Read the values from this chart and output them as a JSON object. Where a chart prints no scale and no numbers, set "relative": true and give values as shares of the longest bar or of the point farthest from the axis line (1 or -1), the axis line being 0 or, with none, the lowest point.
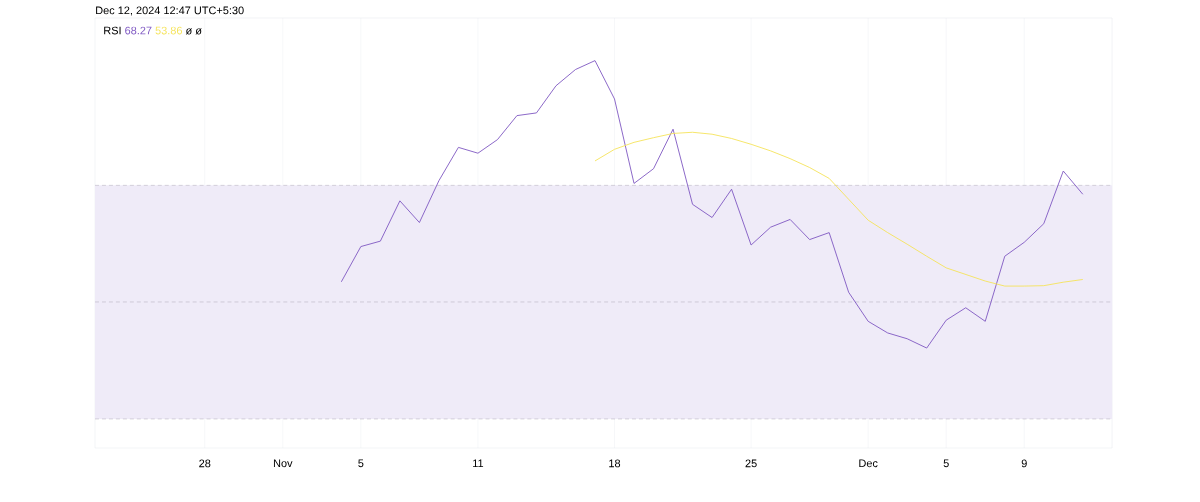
{
  "chart_data": {
    "type": "line",
    "title": "RSI",
    "relative": true,
    "legend": "top left",
    "grid": "x",
    "annotations": [
      "ø ø",
      "Dec 12, 2024 12:47 UTC+5:30"
    ],
    "x": [
      "2024-11-04",
      "2024-11-05",
      "2024-11-06",
      "2024-11-07",
      "2024-11-08",
      "2024-11-09",
      "2024-11-10",
      "2024-11-11",
      "2024-11-12",
      "2024-11-13",
      "2024-11-14",
      "2024-11-15",
      "2024-11-16",
      "2024-11-17",
      "2024-11-18",
      "2024-11-19",
      "2024-11-20",
      "2024-11-21",
      "2024-11-22",
      "2024-11-23",
      "2024-11-24",
      "2024-11-25",
      "2024-11-26",
      "2024-11-27",
      "2024-11-28",
      "2024-11-29",
      "2024-11-30",
      "2024-12-01",
      "2024-12-02",
      "2024-12-03",
      "2024-12-04",
      "2024-12-05",
      "2024-12-06",
      "2024-12-07",
      "2024-12-08",
      "2024-12-09",
      "2024-12-10",
      "2024-12-11",
      "2024-12-12"
    ],
    "series": [
      {
        "name": "68.27",
        "color": "#7e57c2",
        "values": [
          0.429,
          0.52,
          0.534,
          0.638,
          0.582,
          0.69,
          0.776,
          0.761,
          0.796,
          0.858,
          0.865,
          0.935,
          0.977,
          1,
          0.901,
          0.683,
          0.721,
          0.823,
          0.629,
          0.595,
          0.668,
          0.524,
          0.57,
          0.59,
          0.538,
          0.556,
          0.402,
          0.327,
          0.297,
          0.282,
          0.258,
          0.33,
          0.362,
          0.327,
          0.495,
          0.531,
          0.579,
          0.715,
          0.655
        ]
      },
      {
        "name": "53.86",
        "color": "#f5e35a",
        "values": [
          null,
          null,
          null,
          null,
          null,
          null,
          null,
          null,
          null,
          null,
          null,
          null,
          null,
          0.741,
          0.771,
          0.789,
          0.801,
          0.812,
          0.815,
          0.81,
          0.799,
          0.784,
          0.767,
          0.747,
          0.724,
          0.696,
          0.642,
          0.588,
          0.556,
          0.526,
          0.495,
          0.465,
          0.448,
          0.431,
          0.418,
          0.418,
          0.419,
          0.428,
          0.435
        ]
      }
    ],
    "xlim": [
      "2024-10-22T09:00",
      "2024-12-13T12:00"
    ],
    "xticks": [
      {
        "value": "2024-10-28",
        "label": "28"
      },
      {
        "value": "2024-11-01",
        "label": "Nov"
      },
      {
        "value": "2024-11-05",
        "label": "5"
      },
      {
        "value": "2024-11-11",
        "label": "11"
      },
      {
        "value": "2024-11-18",
        "label": "18"
      },
      {
        "value": "2024-11-25",
        "label": "25"
      },
      {
        "value": "2024-12-01",
        "label": "Dec"
      },
      {
        "value": "2024-12-05",
        "label": "5"
      },
      {
        "value": "2024-12-09",
        "label": "9"
      }
    ],
    "bands": [
      {
        "axis": "y",
        "from": 0.075,
        "to": 0.678,
        "color": "#efebf8"
      }
    ],
    "ref_lines": [
      {
        "axis": "y",
        "value": 0.678,
        "color": "#9e9aa8",
        "line_style": "dashed"
      },
      {
        "axis": "y",
        "value": 0.377,
        "color": "#9e9aa8",
        "line_style": "dashed"
      },
      {
        "axis": "y",
        "value": 0.075,
        "color": "#9e9aa8",
        "line_style": "dashed"
      }
    ]
  }
}
